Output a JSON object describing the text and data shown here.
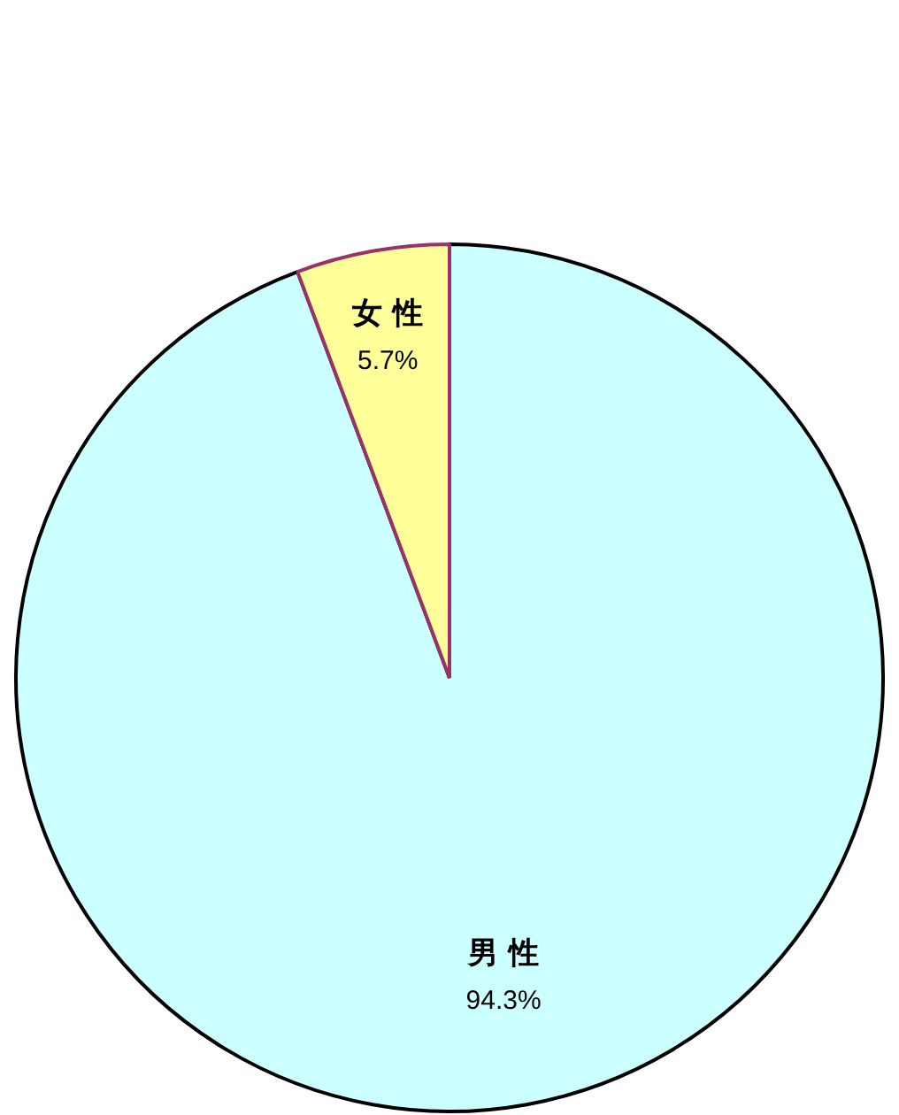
{
  "chart_data": {
    "type": "pie",
    "categories": [
      "男 性",
      "女 性"
    ],
    "values": [
      94.3,
      5.7
    ],
    "colors": [
      "#ccffff",
      "#ffff99"
    ],
    "value_labels": [
      "94.3%",
      "5.7%"
    ],
    "legend": false
  }
}
